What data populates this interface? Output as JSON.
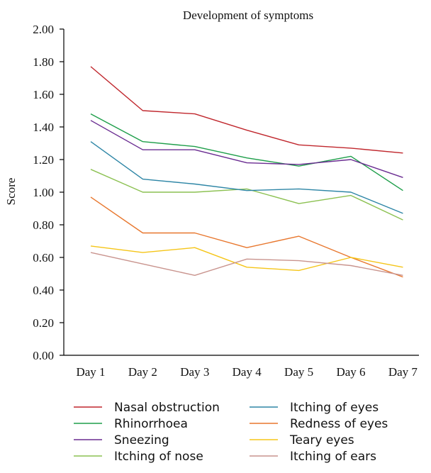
{
  "chart_data": {
    "type": "line",
    "title": "Development of symptoms",
    "xlabel": "",
    "ylabel": "Score",
    "ylim": [
      0,
      2.0
    ],
    "yticks": [
      "0.00",
      "0.20",
      "0.40",
      "0.60",
      "0.80",
      "1.00",
      "1.20",
      "1.40",
      "1.60",
      "1.80",
      "2.00"
    ],
    "categories": [
      "Day 1",
      "Day 2",
      "Day 3",
      "Day 4",
      "Day 5",
      "Day 6",
      "Day 7"
    ],
    "grid": false,
    "legend_position": "bottom",
    "series": [
      {
        "name": "Nasal obstruction",
        "color": "#c0272d",
        "values": [
          1.77,
          1.5,
          1.48,
          1.38,
          1.29,
          1.27,
          1.24
        ]
      },
      {
        "name": "Rhinorrhoea",
        "color": "#1e9e4a",
        "values": [
          1.48,
          1.31,
          1.28,
          1.21,
          1.16,
          1.22,
          1.01
        ]
      },
      {
        "name": "Sneezing",
        "color": "#6a2c91",
        "values": [
          1.44,
          1.26,
          1.26,
          1.18,
          1.17,
          1.2,
          1.09
        ]
      },
      {
        "name": "Itching of nose",
        "color": "#8cc152",
        "values": [
          1.14,
          1.0,
          1.0,
          1.02,
          0.93,
          0.98,
          0.83
        ]
      },
      {
        "name": "Itching of eyes",
        "color": "#2e86a6",
        "values": [
          1.31,
          1.08,
          1.05,
          1.01,
          1.02,
          1.0,
          0.87
        ]
      },
      {
        "name": "Redness of eyes",
        "color": "#e8772e",
        "values": [
          0.97,
          0.75,
          0.75,
          0.66,
          0.73,
          0.6,
          0.48
        ]
      },
      {
        "name": "Teary eyes",
        "color": "#f5c518",
        "values": [
          0.67,
          0.63,
          0.66,
          0.54,
          0.52,
          0.6,
          0.54
        ]
      },
      {
        "name": "Itching of ears",
        "color": "#c9948e",
        "values": [
          0.63,
          0.56,
          0.49,
          0.59,
          0.58,
          0.55,
          0.49
        ]
      }
    ]
  }
}
